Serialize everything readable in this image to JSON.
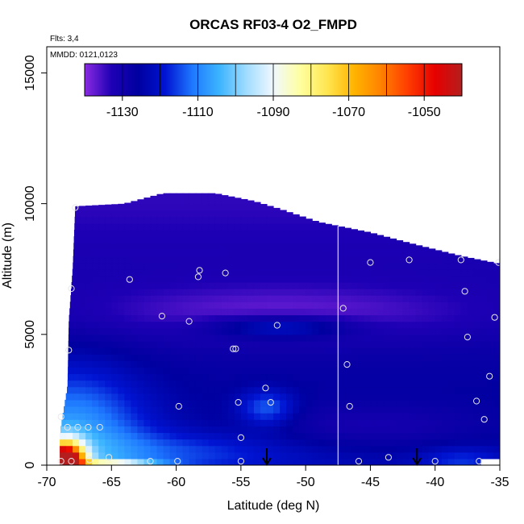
{
  "chart_data": {
    "type": "heatmap",
    "title": "ORCAS RF03-4 O2_FMPD",
    "annotations": {
      "flights": "Flts: 3,4",
      "dates": "MMDD: 0121,0123"
    },
    "xlabel": "Latitude (deg N)",
    "ylabel": "Altitude (m)",
    "xlim": [
      -70,
      -35
    ],
    "ylim": [
      0,
      16000
    ],
    "x_ticks": [
      -70,
      -65,
      -60,
      -55,
      -50,
      -45,
      -40,
      -35
    ],
    "x_tick_labels": [
      "-70",
      "-65",
      "-60",
      "-55",
      "-50",
      "-45",
      "-40",
      "-35"
    ],
    "y_ticks": [
      0,
      5000,
      10000,
      15000
    ],
    "y_tick_labels": [
      "0",
      "5000",
      "10000",
      "15000"
    ],
    "colorbar": {
      "range": [
        -1140,
        -1040
      ],
      "tick_values": [
        -1130,
        -1110,
        -1090,
        -1070,
        -1050
      ],
      "tick_labels": [
        "-1130",
        "-1110",
        "-1090",
        "-1070",
        "-1050"
      ],
      "colors": [
        "#8A2BE2",
        "#1E00B4",
        "#0000A0",
        "#0014D2",
        "#1E78FF",
        "#3CB4FF",
        "#A0DCFF",
        "#F0F8FF",
        "#FFFFA0",
        "#FFE650",
        "#FFB400",
        "#FF8200",
        "#FF3C00",
        "#E60000",
        "#B41E1E"
      ]
    },
    "surface_top": [
      [
        -67.8,
        9900
      ],
      [
        -64,
        10000
      ],
      [
        -61,
        10400
      ],
      [
        -57,
        10400
      ],
      [
        -54,
        10100
      ],
      [
        -52,
        9800
      ],
      [
        -49,
        9300
      ],
      [
        -45,
        8900
      ],
      [
        -42,
        8500
      ],
      [
        -38,
        8000
      ],
      [
        -35,
        7700
      ]
    ],
    "surface_bottom_edge": [
      [
        -69,
        0
      ],
      [
        -69,
        1200
      ],
      [
        -68.4,
        3000
      ],
      [
        -68.3,
        5500
      ],
      [
        -68,
        7500
      ],
      [
        -67.8,
        9900
      ]
    ],
    "sample_points": [
      [
        -67.8,
        9850
      ],
      [
        -68.1,
        6750
      ],
      [
        -63.6,
        7100
      ],
      [
        -58.2,
        7450
      ],
      [
        -58.3,
        7200
      ],
      [
        -56.2,
        7350
      ],
      [
        -61.1,
        5700
      ],
      [
        -59.0,
        5500
      ],
      [
        -55.6,
        4450
      ],
      [
        -55.4,
        4450
      ],
      [
        -52.2,
        5350
      ],
      [
        -47.1,
        6000
      ],
      [
        -45.0,
        7750
      ],
      [
        -42.0,
        7850
      ],
      [
        -38.0,
        7850
      ],
      [
        -35.1,
        7750
      ],
      [
        -37.7,
        6650
      ],
      [
        -35.4,
        5650
      ],
      [
        -37.5,
        4900
      ],
      [
        -46.8,
        3850
      ],
      [
        -68.3,
        4400
      ],
      [
        -53.1,
        2950
      ],
      [
        -52.7,
        2400
      ],
      [
        -55.2,
        2400
      ],
      [
        -59.8,
        2250
      ],
      [
        -46.6,
        2250
      ],
      [
        -36.8,
        2450
      ],
      [
        -36.2,
        1750
      ],
      [
        -35.8,
        3400
      ],
      [
        -68.9,
        1850
      ],
      [
        -68.4,
        1450
      ],
      [
        -67.6,
        1450
      ],
      [
        -66.8,
        1450
      ],
      [
        -65.9,
        1450
      ],
      [
        -55.0,
        1050
      ],
      [
        -68.9,
        150
      ],
      [
        -68.1,
        150
      ],
      [
        -66.7,
        200
      ],
      [
        -65.2,
        300
      ],
      [
        -62.0,
        150
      ],
      [
        -59.9,
        150
      ],
      [
        -55.0,
        150
      ],
      [
        -45.9,
        150
      ],
      [
        -43.6,
        300
      ],
      [
        -40.0,
        150
      ],
      [
        -36.6,
        150
      ]
    ],
    "flight_markers": [
      -53.0,
      -41.4
    ],
    "divider_latitude": -47.5
  }
}
